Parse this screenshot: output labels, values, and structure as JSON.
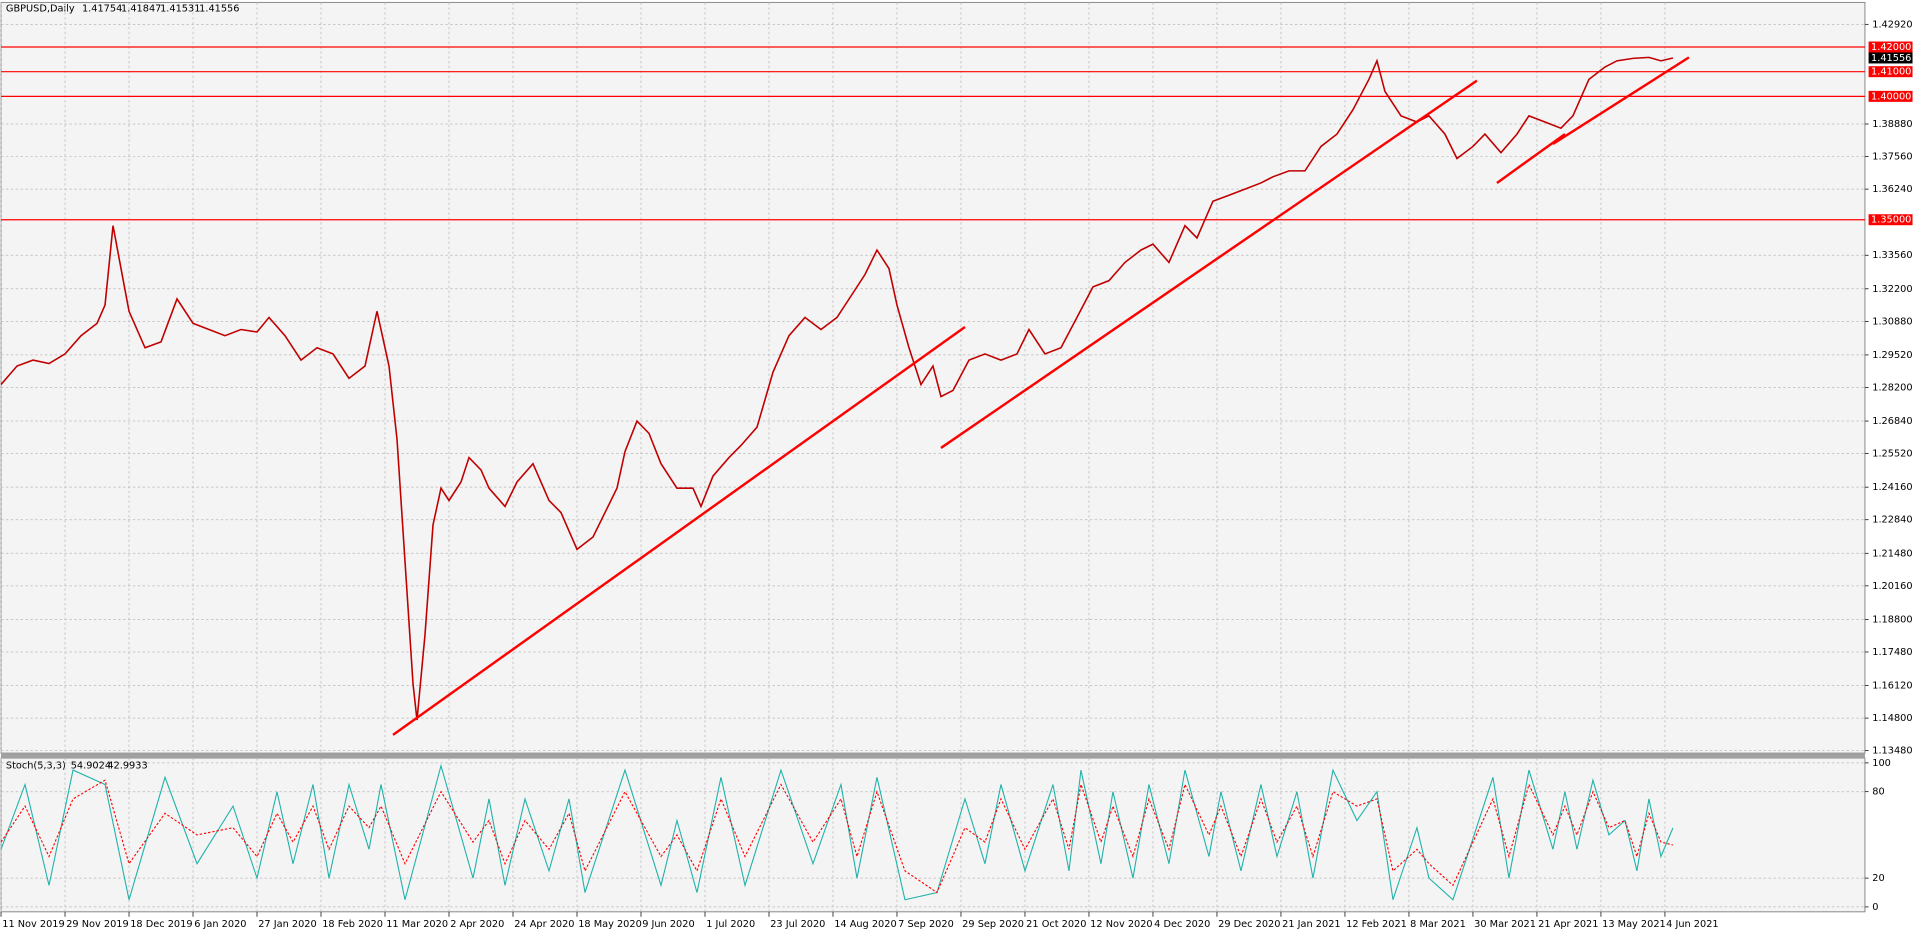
{
  "chart_data": [
    {
      "type": "line",
      "title": "GBPUSD,Daily",
      "ohlc": [
        1.41754,
        1.41847,
        1.41531,
        1.41556
      ],
      "x": [
        0,
        4,
        8,
        12,
        16,
        20,
        24,
        26,
        28,
        30,
        32,
        36,
        40,
        44,
        48,
        52,
        56,
        60,
        64,
        67,
        71,
        75,
        79,
        83,
        87,
        91,
        94,
        97,
        99,
        101,
        103,
        104,
        106,
        108,
        110,
        112,
        115,
        117,
        120,
        122,
        126,
        129,
        133,
        137,
        140,
        144,
        148,
        151,
        154,
        156,
        159,
        162,
        165,
        169,
        173,
        175,
        178,
        182,
        185,
        189,
        193,
        197,
        201,
        205,
        209,
        213,
        216,
        219,
        222,
        224,
        227,
        230,
        233,
        235,
        238,
        242,
        246,
        250,
        254,
        257,
        261,
        265,
        269,
        273,
        277,
        281,
        285,
        288,
        292,
        296,
        299,
        303,
        307,
        311,
        315,
        318,
        322,
        326,
        330,
        334,
        338,
        342,
        344,
        346,
        350,
        354,
        357,
        361,
        364,
        368,
        371,
        375,
        379,
        382,
        386,
        390,
        393,
        397,
        401,
        404,
        408,
        412,
        415,
        418
      ],
      "series": [
        {
          "color": "#c00000",
          "values": [
            1.2832,
            1.2907,
            1.2931,
            1.2917,
            1.2956,
            1.303,
            1.308,
            1.3154,
            1.3476,
            1.3302,
            1.3129,
            1.2981,
            1.3005,
            1.3179,
            1.308,
            1.3055,
            1.303,
            1.3055,
            1.3045,
            1.3104,
            1.303,
            1.2931,
            1.2981,
            1.2956,
            1.2857,
            1.2907,
            1.3129,
            1.2907,
            1.261,
            1.2115,
            1.162,
            1.1472,
            1.1818,
            1.2263,
            1.2412,
            1.2362,
            1.2437,
            1.2536,
            1.2486,
            1.2412,
            1.2338,
            1.2437,
            1.2511,
            1.2362,
            1.2313,
            1.2164,
            1.2214,
            1.2313,
            1.2412,
            1.256,
            1.2684,
            1.2634,
            1.2511,
            1.2412,
            1.2412,
            1.2338,
            1.2461,
            1.2536,
            1.2585,
            1.2659,
            1.2882,
            1.303,
            1.3104,
            1.3055,
            1.3104,
            1.3203,
            1.3278,
            1.3377,
            1.3302,
            1.3154,
            1.2981,
            1.2832,
            1.2907,
            1.2783,
            1.2808,
            1.2931,
            1.2956,
            1.2931,
            1.2956,
            1.3055,
            1.2956,
            1.2981,
            1.3104,
            1.3228,
            1.3253,
            1.3327,
            1.3377,
            1.3401,
            1.3327,
            1.3476,
            1.3426,
            1.3575,
            1.3599,
            1.3624,
            1.3649,
            1.3674,
            1.3698,
            1.3698,
            1.3797,
            1.3847,
            1.3946,
            1.4069,
            1.4144,
            1.402,
            1.3921,
            1.3896,
            1.3921,
            1.3847,
            1.3748,
            1.3797,
            1.3847,
            1.3772,
            1.3847,
            1.3921,
            1.3896,
            1.3871,
            1.3921,
            1.4069,
            1.4119,
            1.4144,
            1.4154,
            1.4158,
            1.4144,
            1.41556
          ]
        }
      ],
      "xlim": [
        0,
        466
      ],
      "xticks": [
        {
          "value": 0,
          "label": "11 Nov 2019"
        },
        {
          "value": 16,
          "label": "29 Nov 2019"
        },
        {
          "value": 32,
          "label": "18 Dec 2019"
        },
        {
          "value": 48,
          "label": "6 Jan 2020"
        },
        {
          "value": 64,
          "label": "27 Jan 2020"
        },
        {
          "value": 80,
          "label": "18 Feb 2020"
        },
        {
          "value": 96,
          "label": "11 Mar 2020"
        },
        {
          "value": 112,
          "label": "2 Apr 2020"
        },
        {
          "value": 128,
          "label": "24 Apr 2020"
        },
        {
          "value": 144,
          "label": "18 May 2020"
        },
        {
          "value": 160,
          "label": "9 Jun 2020"
        },
        {
          "value": 176,
          "label": "1 Jul 2020"
        },
        {
          "value": 192,
          "label": "23 Jul 2020"
        },
        {
          "value": 208,
          "label": "14 Aug 2020"
        },
        {
          "value": 224,
          "label": "7 Sep 2020"
        },
        {
          "value": 240,
          "label": "29 Sep 2020"
        },
        {
          "value": 256,
          "label": "21 Oct 2020"
        },
        {
          "value": 272,
          "label": "12 Nov 2020"
        },
        {
          "value": 288,
          "label": "4 Dec 2020"
        },
        {
          "value": 304,
          "label": "29 Dec 2020"
        },
        {
          "value": 320,
          "label": "21 Jan 2021"
        },
        {
          "value": 336,
          "label": "12 Feb 2021"
        },
        {
          "value": 352,
          "label": "8 Mar 2021"
        },
        {
          "value": 368,
          "label": "30 Mar 2021"
        },
        {
          "value": 384,
          "label": "21 Apr 2021"
        },
        {
          "value": 400,
          "label": "13 May 2021"
        },
        {
          "value": 416,
          "label": "4 Jun 2021"
        }
      ],
      "ylim": [
        1.1338,
        1.4351
      ],
      "yticks": [
        {
          "value": 1.4292,
          "label": "1.42920"
        },
        {
          "value": 1.3888,
          "label": "1.38880"
        },
        {
          "value": 1.3756,
          "label": "1.37560"
        },
        {
          "value": 1.3624,
          "label": "1.36240"
        },
        {
          "value": 1.3356,
          "label": "1.33560"
        },
        {
          "value": 1.322,
          "label": "1.32200"
        },
        {
          "value": 1.3088,
          "label": "1.30880"
        },
        {
          "value": 1.2952,
          "label": "1.29520"
        },
        {
          "value": 1.282,
          "label": "1.28200"
        },
        {
          "value": 1.2684,
          "label": "1.26840"
        },
        {
          "value": 1.2552,
          "label": "1.25520"
        },
        {
          "value": 1.2416,
          "label": "1.24160"
        },
        {
          "value": 1.2284,
          "label": "1.22840"
        },
        {
          "value": 1.2148,
          "label": "1.21480"
        },
        {
          "value": 1.2016,
          "label": "1.20160"
        },
        {
          "value": 1.188,
          "label": "1.18800"
        },
        {
          "value": 1.1748,
          "label": "1.17480"
        },
        {
          "value": 1.1612,
          "label": "1.16120"
        },
        {
          "value": 1.148,
          "label": "1.14800"
        },
        {
          "value": 1.1348,
          "label": "1.13480"
        }
      ],
      "grid": true,
      "levels": [
        {
          "value": 1.42,
          "label": "1.42000"
        },
        {
          "value": 1.41,
          "label": "1.41000"
        },
        {
          "value": 1.4,
          "label": "1.40000"
        },
        {
          "value": 1.35,
          "label": "1.35000"
        }
      ],
      "level_color": "#ff0000",
      "trendlines": [
        {
          "x": [
            98,
            241
          ],
          "y": [
            1.1412,
            1.3065
          ]
        },
        {
          "x": [
            235,
            369
          ],
          "y": [
            1.2575,
            1.4064
          ]
        },
        {
          "x": [
            374,
            391
          ],
          "y": [
            1.3649,
            1.3847
          ]
        },
        {
          "x": [
            388,
            422
          ],
          "y": [
            1.3807,
            1.4158
          ]
        }
      ],
      "trendline_color": "#ff0000"
    },
    {
      "type": "line",
      "title": "Stoch(5,3,3)",
      "x": [
        0,
        6,
        12,
        18,
        26,
        32,
        41,
        49,
        58,
        64,
        69,
        73,
        78,
        82,
        87,
        92,
        95,
        101,
        110,
        118,
        122,
        126,
        131,
        137,
        142,
        146,
        156,
        165,
        169,
        174,
        180,
        186,
        195,
        203,
        210,
        214,
        219,
        226,
        234,
        241,
        246,
        250,
        256,
        263,
        267,
        270,
        275,
        278,
        283,
        287,
        292,
        296,
        302,
        305,
        310,
        315,
        319,
        324,
        328,
        333,
        339,
        344,
        348,
        354,
        357,
        363,
        373,
        377,
        382,
        388,
        391,
        394,
        398,
        402,
        406,
        409,
        412,
        415,
        418
      ],
      "series": [
        {
          "color": "#20b2aa",
          "style": "solid",
          "values": [
            40,
            85,
            15,
            95,
            85,
            5,
            90,
            30,
            70,
            20,
            80,
            30,
            85,
            20,
            85,
            40,
            85,
            5,
            98,
            20,
            75,
            15,
            75,
            25,
            75,
            10,
            95,
            15,
            60,
            10,
            90,
            15,
            95,
            30,
            85,
            20,
            90,
            5,
            10,
            75,
            30,
            85,
            25,
            85,
            25,
            95,
            30,
            80,
            20,
            85,
            30,
            95,
            35,
            80,
            25,
            85,
            35,
            80,
            20,
            95,
            60,
            80,
            5,
            55,
            20,
            5,
            90,
            20,
            95,
            40,
            80,
            40,
            88,
            50,
            60,
            25,
            75,
            35,
            54.9024
          ]
        },
        {
          "color": "#ff0000",
          "style": "dashed",
          "values": [
            45,
            70,
            35,
            75,
            88,
            30,
            65,
            50,
            55,
            35,
            65,
            45,
            70,
            40,
            70,
            55,
            70,
            30,
            80,
            45,
            60,
            30,
            60,
            40,
            65,
            25,
            80,
            35,
            50,
            25,
            75,
            35,
            85,
            45,
            75,
            35,
            80,
            25,
            10,
            55,
            45,
            75,
            40,
            75,
            40,
            85,
            45,
            70,
            35,
            75,
            40,
            85,
            50,
            70,
            35,
            75,
            45,
            70,
            35,
            80,
            70,
            75,
            25,
            40,
            30,
            15,
            75,
            35,
            85,
            50,
            70,
            50,
            80,
            55,
            60,
            35,
            65,
            45,
            42.9933
          ]
        }
      ],
      "xlim": [
        0,
        466
      ],
      "ylim": [
        0,
        100
      ],
      "yticks": [
        0,
        20,
        80,
        100
      ],
      "grid": true
    }
  ]
}
